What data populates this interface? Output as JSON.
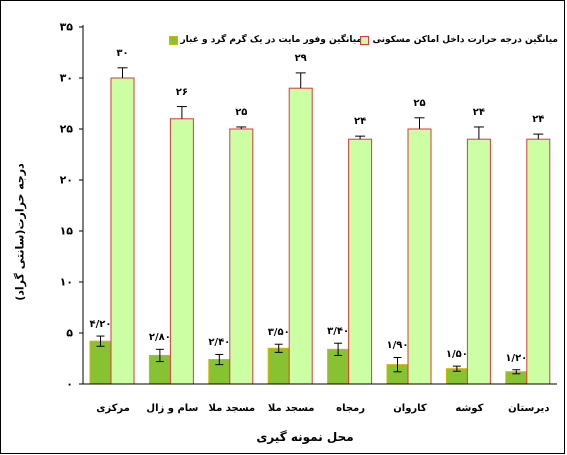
{
  "chart_data": {
    "type": "bar",
    "categories": [
      "مرکزی",
      "سام و زال",
      "مسجد ملا",
      "مسجد ملا",
      "رمجاه",
      "کاروان",
      "کوشه",
      "دیرستان"
    ],
    "series": [
      {
        "name": "میانگین وفور مایت در یک گرم گرد و غبار",
        "values": [
          4.2,
          2.8,
          2.4,
          3.5,
          3.4,
          1.9,
          1.5,
          1.2
        ],
        "value_labels": [
          "۴/۲۰",
          "۲/۸۰",
          "۲/۴۰",
          "۳/۵۰",
          "۳/۴۰",
          "۱/۹۰",
          "۱/۵۰",
          "۱/۲۰"
        ],
        "errors": [
          0.5,
          0.6,
          0.5,
          0.4,
          0.6,
          0.7,
          0.25,
          0.2
        ],
        "color": "#86C232",
        "edge_color": "#D6B400"
      },
      {
        "name": "میانگین درجه حرارت داخل اماکن مسکونی",
        "values": [
          30,
          26,
          25,
          29,
          24,
          25,
          24,
          24
        ],
        "value_labels": [
          "۳۰",
          "۲۶",
          "۲۵",
          "۲۹",
          "۲۴",
          "۲۵",
          "۲۴",
          "۲۴"
        ],
        "errors": [
          1.0,
          1.2,
          0.2,
          1.5,
          0.3,
          1.1,
          1.2,
          0.5
        ],
        "color": "#CCFFA3",
        "edge_color": "#E2363B"
      }
    ],
    "xlabel": "محل نمونه گیری",
    "ylabel": "درجه حرارت(سانتی گراد)",
    "ylim": [
      0,
      35
    ],
    "yticks": [
      0,
      5,
      10,
      15,
      20,
      25,
      30,
      35
    ],
    "ytick_labels": [
      "۰",
      "۵",
      "۱۰",
      "۱۵",
      "۲۰",
      "۲۵",
      "۳۰",
      "۳۵"
    ],
    "legend": "top",
    "grid": false
  }
}
